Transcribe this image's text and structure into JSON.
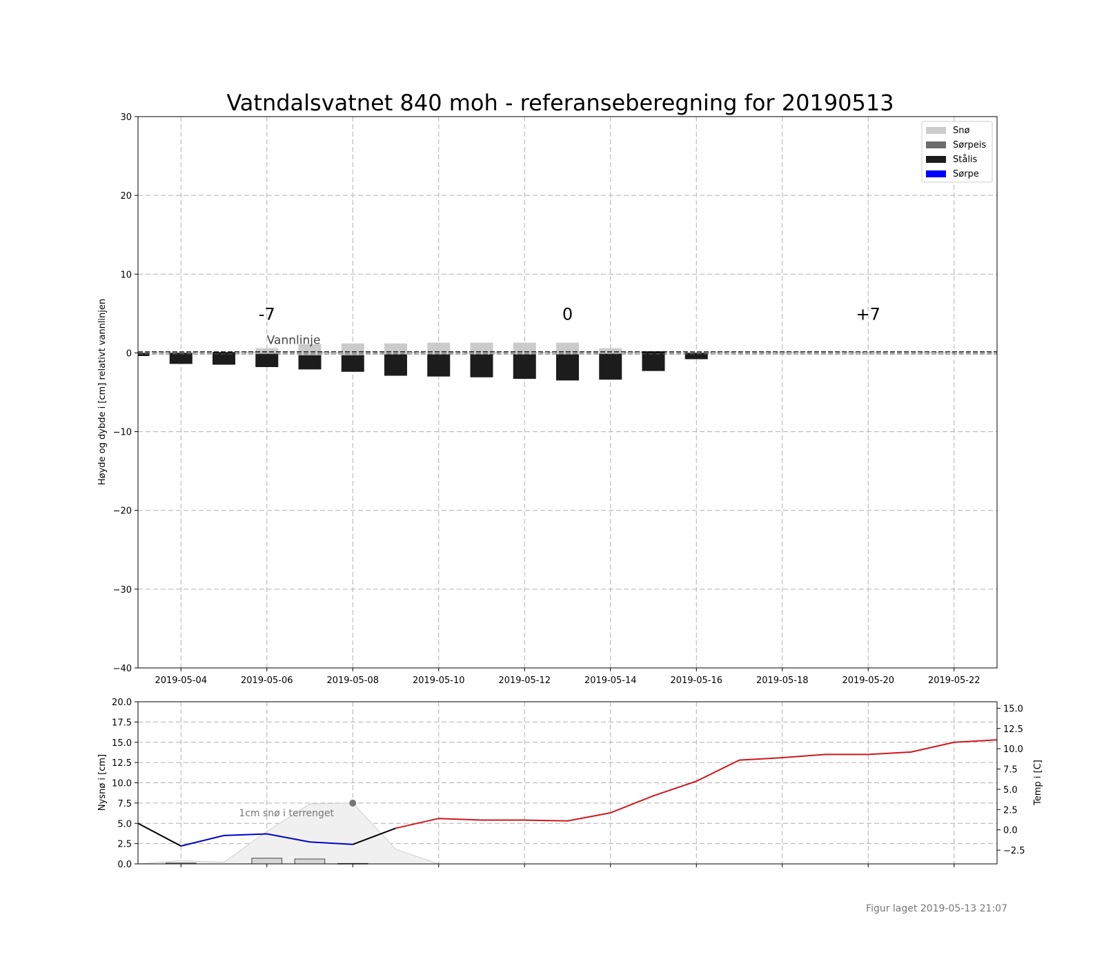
{
  "title": "Vatndalsvatnet 840 moh - referanseberegning for 20190513",
  "footer": "Figur laget 2019-05-13 21:07",
  "colors": {
    "sno": "#cbcbcb",
    "sorpeis": "#6b6b6b",
    "stalis": "#1c1c1c",
    "sorpe": "#0000ff",
    "temp_past_snow": "#0000cc",
    "temp_forecast": "#d0161a",
    "temp_obs": "#000000",
    "terrain_fill": "#f0f0f0"
  },
  "chart_data": [
    {
      "type": "bar",
      "ylabel": "Høyde og dybde i [cm] relativt vannlinjen",
      "ylim": [
        -40,
        30
      ],
      "yticks": [
        "30",
        "20",
        "10",
        "0",
        "−10",
        "−20",
        "−30",
        "−40"
      ],
      "ytick_values": [
        30,
        20,
        10,
        0,
        -10,
        -20,
        -30,
        -40
      ],
      "xlim": [
        "2019-05-03",
        "2019-05-23"
      ],
      "xticks": [
        "2019-05-04",
        "2019-05-06",
        "2019-05-08",
        "2019-05-10",
        "2019-05-12",
        "2019-05-14",
        "2019-05-16",
        "2019-05-18",
        "2019-05-20",
        "2019-05-22"
      ],
      "grid": true,
      "legend": {
        "position": "top-right",
        "entries": [
          {
            "label": "Snø",
            "color": "#cbcbcb"
          },
          {
            "label": "Sørpeis",
            "color": "#6b6b6b"
          },
          {
            "label": "Stålis",
            "color": "#1c1c1c"
          },
          {
            "label": "Sørpe",
            "color": "#0000ff"
          }
        ]
      },
      "markers": [
        {
          "label": "-7",
          "x": "2019-05-06"
        },
        {
          "label": "0",
          "x": "2019-05-13"
        },
        {
          "label": "+7",
          "x": "2019-05-20"
        }
      ],
      "waterline_label": "Vannlinje",
      "waterline_value": 0,
      "columns": [
        {
          "x": "2019-05-03",
          "stalis": [
            -0.4,
            0.0
          ],
          "sno": null
        },
        {
          "x": "2019-05-04",
          "stalis": [
            -1.4,
            0.0
          ],
          "sno": null
        },
        {
          "x": "2019-05-05",
          "stalis": [
            -1.5,
            0.1
          ],
          "sno": null
        },
        {
          "x": "2019-05-06",
          "stalis": [
            -1.8,
            -0.1
          ],
          "sno": [
            -0.1,
            0.6
          ]
        },
        {
          "x": "2019-05-07",
          "stalis": [
            -2.1,
            -0.3
          ],
          "sno": [
            -0.3,
            1.1
          ]
        },
        {
          "x": "2019-05-08",
          "stalis": [
            -2.4,
            -0.3
          ],
          "sno": [
            -0.3,
            1.2
          ]
        },
        {
          "x": "2019-05-09",
          "stalis": [
            -2.9,
            -0.2
          ],
          "sno": [
            -0.2,
            1.2
          ]
        },
        {
          "x": "2019-05-10",
          "stalis": [
            -3.0,
            -0.2
          ],
          "sno": [
            -0.2,
            1.3
          ]
        },
        {
          "x": "2019-05-11",
          "stalis": [
            -3.1,
            -0.2
          ],
          "sno": [
            -0.2,
            1.3
          ]
        },
        {
          "x": "2019-05-12",
          "stalis": [
            -3.3,
            -0.2
          ],
          "sno": [
            -0.2,
            1.3
          ]
        },
        {
          "x": "2019-05-13",
          "stalis": [
            -3.5,
            -0.2
          ],
          "sno": [
            -0.2,
            1.3
          ]
        },
        {
          "x": "2019-05-14",
          "stalis": [
            -3.4,
            -0.1
          ],
          "sno": [
            -0.1,
            0.6
          ]
        },
        {
          "x": "2019-05-15",
          "stalis": [
            -2.3,
            0.2
          ],
          "sno": null
        },
        {
          "x": "2019-05-16",
          "stalis": [
            -0.8,
            0.0
          ],
          "sno": null
        }
      ]
    },
    {
      "type": "line",
      "ylabel": "Nysnø i [cm]",
      "ylim": [
        0,
        20
      ],
      "yticks": [
        "20.0",
        "17.5",
        "15.0",
        "12.5",
        "10.0",
        "7.5",
        "5.0",
        "2.5",
        "0.0"
      ],
      "ytick_values": [
        20,
        17.5,
        15,
        12.5,
        10,
        7.5,
        5,
        2.5,
        0
      ],
      "y2label": "Temp i [C]",
      "y2lim": [
        -4.2,
        15.8
      ],
      "y2ticks": [
        "15.0",
        "12.5",
        "10.0",
        "7.5",
        "5.0",
        "2.5",
        "0.0",
        "−2.5"
      ],
      "y2tick_values": [
        15,
        12.5,
        10,
        7.5,
        5,
        2.5,
        0,
        -2.5
      ],
      "grid": true,
      "annotation": {
        "text": "1cm snø i terrenget",
        "point_x": "2019-05-08",
        "point_y": 7.5
      },
      "new_snow_bars": [
        {
          "x": "2019-05-04",
          "value": 0.1
        },
        {
          "x": "2019-05-06",
          "value": 0.7
        },
        {
          "x": "2019-05-07",
          "value": 0.6
        },
        {
          "x": "2019-05-08",
          "value": 0.05
        }
      ],
      "terrain_snow": {
        "x": [
          "2019-05-03",
          "2019-05-04",
          "2019-05-05",
          "2019-05-06",
          "2019-05-07",
          "2019-05-08",
          "2019-05-09",
          "2019-05-10"
        ],
        "values": [
          0.0,
          0.4,
          0.2,
          4.0,
          7.4,
          7.5,
          1.8,
          0.0
        ]
      },
      "series": [
        {
          "segment": "obs_start",
          "color": "#000000",
          "x": [
            "2019-05-03",
            "2019-05-04"
          ],
          "values": [
            0.8,
            -2.0
          ]
        },
        {
          "segment": "snow",
          "color": "#0000cc",
          "x": [
            "2019-05-04",
            "2019-05-05",
            "2019-05-06",
            "2019-05-07",
            "2019-05-08"
          ],
          "values": [
            -2.0,
            -0.7,
            -0.5,
            -1.5,
            -1.8
          ]
        },
        {
          "segment": "obs_mid",
          "color": "#000000",
          "x": [
            "2019-05-08",
            "2019-05-09"
          ],
          "values": [
            -1.8,
            0.2
          ]
        },
        {
          "segment": "forecast",
          "color": "#d0161a",
          "x": [
            "2019-05-09",
            "2019-05-10",
            "2019-05-11",
            "2019-05-12",
            "2019-05-13",
            "2019-05-14",
            "2019-05-15",
            "2019-05-16",
            "2019-05-17",
            "2019-05-18",
            "2019-05-19",
            "2019-05-20",
            "2019-05-21",
            "2019-05-22",
            "2019-05-23"
          ],
          "values": [
            0.2,
            1.4,
            1.2,
            1.2,
            1.1,
            2.1,
            4.2,
            6.0,
            8.6,
            8.9,
            9.3,
            9.3,
            9.6,
            10.8,
            11.1
          ]
        }
      ]
    }
  ]
}
